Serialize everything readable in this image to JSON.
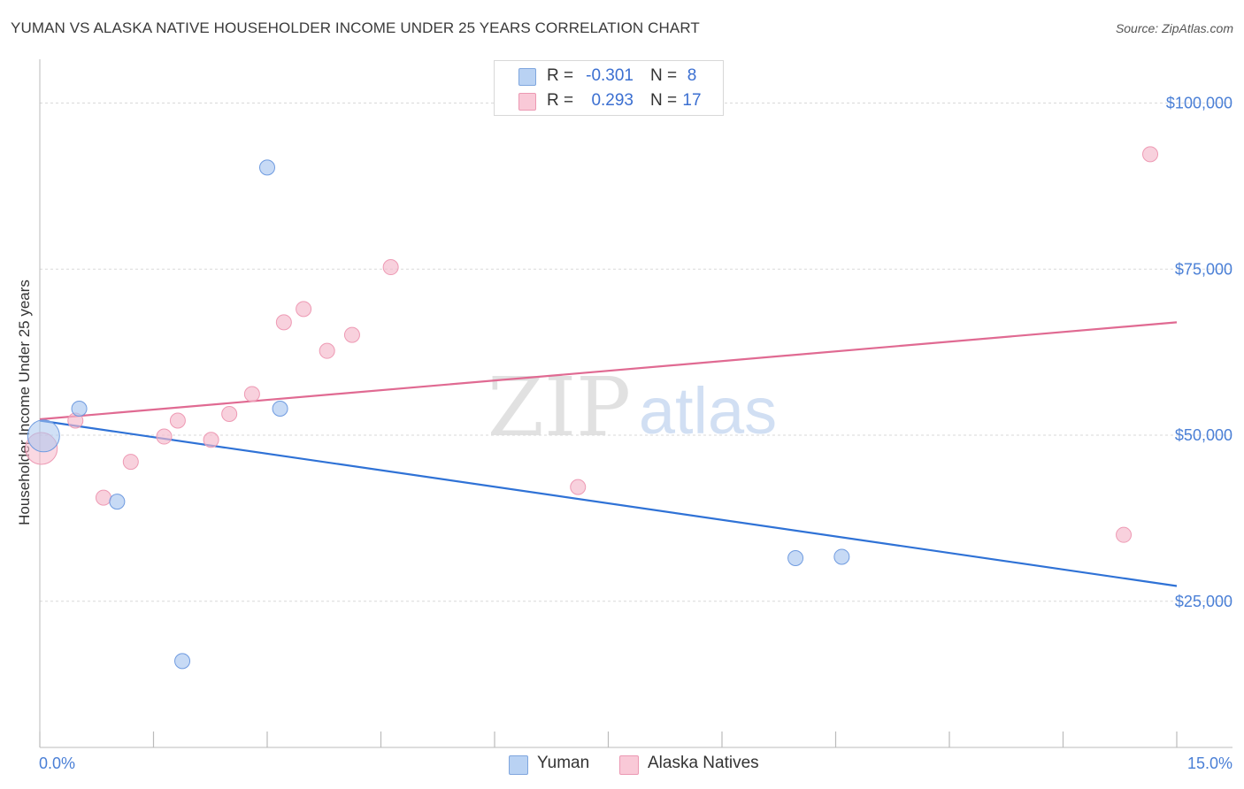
{
  "title": "YUMAN VS ALASKA NATIVE HOUSEHOLDER INCOME UNDER 25 YEARS CORRELATION CHART",
  "source": "Source: ZipAtlas.com",
  "watermark": {
    "zip": "ZIP",
    "atlas": "atlas"
  },
  "chart_data": {
    "type": "scatter",
    "title": "YUMAN VS ALASKA NATIVE HOUSEHOLDER INCOME UNDER 25 YEARS CORRELATION CHART",
    "xlabel": "",
    "ylabel": "Householder Income Under 25 years",
    "xlim": [
      0,
      15
    ],
    "ylim": [
      3000,
      105000
    ],
    "x_tick_labels": [
      "0.0%",
      "15.0%"
    ],
    "y_ticks": [
      {
        "value": 25000,
        "label": "$25,000"
      },
      {
        "value": 50000,
        "label": "$50,000"
      },
      {
        "value": 75000,
        "label": "$75,000"
      },
      {
        "value": 100000,
        "label": "$100,000"
      }
    ],
    "legend": [
      {
        "name": "Yuman",
        "r_label": "R =",
        "r": "-0.301",
        "n_label": "N =",
        "n": "8",
        "color": "#a9c6ef",
        "stroke": "#7fa6de"
      },
      {
        "name": "Alaska Natives",
        "r_label": "R =",
        "r": "0.293",
        "n_label": "N =",
        "n": "17",
        "color": "#f5b8cb",
        "stroke": "#ec99b3"
      }
    ],
    "series": [
      {
        "name": "Yuman",
        "color": "#a9c6ef",
        "stroke": "#6f9be0",
        "line_color": "#2f72d6",
        "trend": [
          [
            0,
            52200
          ],
          [
            15,
            27300
          ]
        ],
        "points": [
          [
            0.05,
            49900,
            "large"
          ],
          [
            0.52,
            54000
          ],
          [
            1.02,
            40000
          ],
          [
            1.88,
            16000
          ],
          [
            3.0,
            90300
          ],
          [
            3.17,
            54000
          ],
          [
            9.97,
            31500
          ],
          [
            10.58,
            31700
          ]
        ]
      },
      {
        "name": "Alaska Natives",
        "color": "#f5b8cb",
        "stroke": "#ee9ab4",
        "line_color": "#e06a92",
        "trend": [
          [
            0,
            52400
          ],
          [
            15,
            67000
          ]
        ],
        "points": [
          [
            0.02,
            48000,
            "large"
          ],
          [
            0.47,
            52200
          ],
          [
            0.84,
            40600
          ],
          [
            1.2,
            46000
          ],
          [
            1.64,
            49800
          ],
          [
            1.82,
            52200
          ],
          [
            2.26,
            49300
          ],
          [
            2.5,
            53200
          ],
          [
            2.8,
            56200
          ],
          [
            3.22,
            67000
          ],
          [
            3.48,
            69000
          ],
          [
            3.79,
            62700
          ],
          [
            4.12,
            65100
          ],
          [
            4.63,
            75300
          ],
          [
            7.1,
            42200
          ],
          [
            14.3,
            35000
          ],
          [
            14.65,
            92300
          ]
        ]
      }
    ]
  }
}
